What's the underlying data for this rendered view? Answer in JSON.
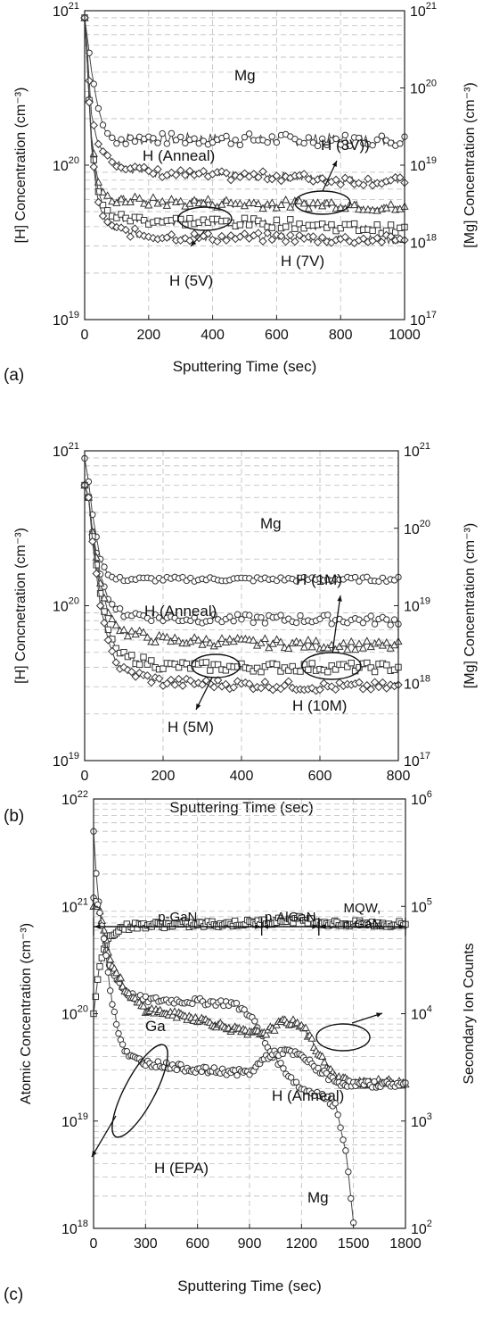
{
  "chart_data": [
    {
      "panel_label": "(a)",
      "type": "scatter",
      "xlabel": "Sputtering Time (sec)",
      "ylabel_left": "[H] Concentration (cm⁻³)",
      "ylabel_right": "[Mg] Concentration (cm⁻³)",
      "xlim": [
        0,
        1000
      ],
      "x_ticks": [
        "0",
        "200",
        "400",
        "600",
        "800",
        "1000"
      ],
      "ylim_left": [
        1e+19,
        1e+21
      ],
      "ylim_right": [
        1e+17,
        1e+21
      ],
      "y_scale": "log",
      "left_ticks": [
        {
          "base": "10",
          "exp": "19"
        },
        {
          "base": "10",
          "exp": "20"
        },
        {
          "base": "10",
          "exp": "21"
        }
      ],
      "right_ticks": [
        {
          "base": "10",
          "exp": "17"
        },
        {
          "base": "10",
          "exp": "18"
        },
        {
          "base": "10",
          "exp": "19"
        },
        {
          "base": "10",
          "exp": "20"
        },
        {
          "base": "10",
          "exp": "21"
        }
      ],
      "grid": true,
      "series": [
        {
          "name": "Mg",
          "axis": "right",
          "marker": "circle",
          "n": 140,
          "x": [
            0,
            10,
            20,
            40,
            60,
            80,
            100,
            1000
          ],
          "y": [
            8e+20,
            4e+20,
            1.8e+20,
            6e+19,
            3e+19,
            2.3e+19,
            2.2e+19,
            2.1e+19
          ]
        },
        {
          "name": "H (Anneal)",
          "axis": "left",
          "marker": "diamond",
          "n": 140,
          "x": [
            0,
            10,
            20,
            40,
            60,
            100,
            150,
            200,
            400,
            600,
            800,
            1000
          ],
          "y": [
            9e+20,
            5e+20,
            2.2e+20,
            1.4e+20,
            1.2e+20,
            1.05e+20,
            9.5e+19,
            9e+19,
            8.5e+19,
            8.5e+19,
            8e+19,
            7.8e+19
          ]
        },
        {
          "name": "H (3V)",
          "axis": "left",
          "marker": "triangle",
          "n": 140,
          "x": [
            0,
            10,
            20,
            40,
            60,
            100,
            200,
            400,
            600,
            800,
            1000
          ],
          "y": [
            9e+20,
            4e+20,
            1.6e+20,
            8e+19,
            6.5e+19,
            6e+19,
            5.8e+19,
            5.7e+19,
            5.6e+19,
            5.6e+19,
            5.2e+19
          ]
        },
        {
          "name": "H (5V)",
          "axis": "left",
          "marker": "square",
          "n": 140,
          "x": [
            0,
            10,
            20,
            40,
            60,
            100,
            200,
            400,
            600,
            800,
            1000
          ],
          "y": [
            9e+20,
            4e+20,
            1.5e+20,
            7e+19,
            5.3e+19,
            4.6e+19,
            4.4e+19,
            4.3e+19,
            4.2e+19,
            4e+19,
            3.8e+19
          ]
        },
        {
          "name": "H (7V)",
          "axis": "left",
          "marker": "diamond",
          "n": 140,
          "x": [
            0,
            10,
            20,
            40,
            60,
            100,
            200,
            400,
            600,
            800,
            1000
          ],
          "y": [
            9e+20,
            4e+20,
            1.4e+20,
            6e+19,
            4.5e+19,
            3.8e+19,
            3.5e+19,
            3.4e+19,
            3.4e+19,
            3.3e+19,
            3.3e+19
          ]
        }
      ],
      "annotations": [
        "Mg",
        "H (Anneal)",
        "H (3V))",
        "H (5V)",
        "H (7V)"
      ]
    },
    {
      "panel_label": "(b)",
      "type": "scatter",
      "xlabel": "Sputtering Time (sec)",
      "ylabel_left": "[H] Concnetration (cm⁻³)",
      "ylabel_right": "[Mg] Concentration (cm⁻³)",
      "xlim": [
        0,
        800
      ],
      "x_ticks": [
        "0",
        "200",
        "400",
        "600",
        "800"
      ],
      "ylim_left": [
        1e+19,
        1e+21
      ],
      "ylim_right": [
        1e+17,
        1e+21
      ],
      "y_scale": "log",
      "left_ticks": [
        {
          "base": "10",
          "exp": "19"
        },
        {
          "base": "10",
          "exp": "20"
        },
        {
          "base": "10",
          "exp": "21"
        }
      ],
      "right_ticks": [
        {
          "base": "10",
          "exp": "17"
        },
        {
          "base": "10",
          "exp": "18"
        },
        {
          "base": "10",
          "exp": "19"
        },
        {
          "base": "10",
          "exp": "20"
        },
        {
          "base": "10",
          "exp": "21"
        }
      ],
      "grid": true,
      "series": [
        {
          "name": "Mg",
          "axis": "right",
          "marker": "circle",
          "n": 80,
          "x": [
            0,
            10,
            20,
            40,
            60,
            80,
            100,
            800
          ],
          "y": [
            8e+20,
            4e+20,
            1.5e+20,
            4e+19,
            2.5e+19,
            2.2e+19,
            2.2e+19,
            2.2e+19
          ]
        },
        {
          "name": "H (Anneal)",
          "axis": "left",
          "marker": "circle",
          "n": 80,
          "x": [
            0,
            10,
            20,
            40,
            60,
            80,
            100,
            200,
            400,
            600,
            800
          ],
          "y": [
            6e+20,
            5e+20,
            3e+20,
            1.6e+20,
            1.1e+20,
            9.5e+19,
            9e+19,
            8.3e+19,
            8.2e+19,
            8.2e+19,
            8e+19
          ]
        },
        {
          "name": "H (1M)",
          "axis": "left",
          "marker": "triangle",
          "n": 80,
          "x": [
            0,
            10,
            20,
            40,
            60,
            80,
            100,
            200,
            400,
            600,
            800
          ],
          "y": [
            6e+20,
            5e+20,
            3e+20,
            1.4e+20,
            9e+19,
            7.5e+19,
            6.8e+19,
            6e+19,
            5.8e+19,
            5.6e+19,
            5.5e+19
          ]
        },
        {
          "name": "H (5M)",
          "axis": "left",
          "marker": "square",
          "n": 80,
          "x": [
            0,
            10,
            20,
            40,
            60,
            80,
            100,
            200,
            400,
            600,
            800
          ],
          "y": [
            6e+20,
            5e+20,
            2.8e+20,
            1.2e+20,
            7e+19,
            5.3e+19,
            4.7e+19,
            4.1e+19,
            4e+19,
            4e+19,
            4e+19
          ]
        },
        {
          "name": "H (10M)",
          "axis": "left",
          "marker": "diamond",
          "n": 80,
          "x": [
            0,
            10,
            20,
            40,
            60,
            80,
            100,
            200,
            400,
            600,
            800
          ],
          "y": [
            6e+20,
            5e+20,
            2.6e+20,
            1e+20,
            6e+19,
            4.3e+19,
            3.8e+19,
            3.2e+19,
            3.1e+19,
            3e+19,
            3e+19
          ]
        }
      ],
      "annotations": [
        "Mg",
        "H (Anneal)",
        "H (1M)",
        "H (5M)",
        "H (10M)"
      ]
    },
    {
      "panel_label": "(c)",
      "type": "scatter",
      "xlabel": "Sputtering Time (sec)",
      "ylabel_left": "Atomic Concentration (cm⁻³)",
      "ylabel_right": "Secondary Ion Counts",
      "xlim": [
        0,
        1800
      ],
      "x_ticks": [
        "0",
        "300",
        "600",
        "900",
        "1200",
        "1500",
        "1800"
      ],
      "ylim_left": [
        1e+18,
        1e+22
      ],
      "ylim_right": [
        100.0,
        1000000.0
      ],
      "y_scale": "log",
      "left_ticks": [
        {
          "base": "10",
          "exp": "18"
        },
        {
          "base": "10",
          "exp": "19"
        },
        {
          "base": "10",
          "exp": "20"
        },
        {
          "base": "10",
          "exp": "21"
        },
        {
          "base": "10",
          "exp": "22"
        }
      ],
      "right_ticks": [
        {
          "base": "10",
          "exp": "2"
        },
        {
          "base": "10",
          "exp": "3"
        },
        {
          "base": "10",
          "exp": "4"
        },
        {
          "base": "10",
          "exp": "5"
        },
        {
          "base": "10",
          "exp": "6"
        }
      ],
      "grid": true,
      "regions": [
        {
          "label": "p-GaN",
          "from": 0,
          "to": 970
        },
        {
          "label": "p-AlGaN",
          "from": 970,
          "to": 1300
        },
        {
          "label": "MQW,",
          "label2": "n-GaN",
          "from": 1300,
          "to": 1800
        }
      ],
      "series": [
        {
          "name": "Ga",
          "axis": "right",
          "marker": "square",
          "n": 300,
          "x": [
            0,
            30,
            60,
            100,
            150,
            200,
            300,
            600,
            900,
            1100,
            1200,
            1300,
            1400,
            1800
          ],
          "y": [
            10000.0,
            25000.0,
            40000.0,
            55000.0,
            62000.0,
            65000.0,
            67000.0,
            68000.0,
            70000.0,
            74000.0,
            76000.0,
            72000.0,
            69000.0,
            68000.0
          ]
        },
        {
          "name": "Mg",
          "axis": "left",
          "marker": "circle",
          "n": 100,
          "x": [
            0,
            20,
            50,
            100,
            200,
            300,
            600,
            800,
            900,
            1000,
            1100,
            1200,
            1300,
            1400,
            1450,
            1500
          ],
          "y": [
            5e+21,
            1.5e+21,
            6e+20,
            2.5e+20,
            1.5e+20,
            1.35e+20,
            1.3e+20,
            1.25e+20,
            1e+20,
            5e+19,
            3e+19,
            2e+19,
            1.8e+19,
            1.4e+19,
            6e+18,
            1.2e+18
          ]
        },
        {
          "name": "H (Anneal)",
          "axis": "left",
          "marker": "triangle",
          "n": 300,
          "x": [
            0,
            30,
            60,
            100,
            200,
            300,
            600,
            900,
            1000,
            1100,
            1200,
            1250,
            1300,
            1400,
            1500,
            1800
          ],
          "y": [
            1e+21,
            1e+21,
            6e+20,
            3e+20,
            1.5e+20,
            1.1e+20,
            9e+19,
            6.5e+19,
            6.8e+19,
            8.5e+19,
            8e+19,
            6e+19,
            4.2e+19,
            2.5e+19,
            2.3e+19,
            2.3e+19
          ]
        },
        {
          "name": "H (EPA)",
          "axis": "left",
          "marker": "circle",
          "n": 300,
          "x": [
            0,
            30,
            60,
            100,
            150,
            200,
            300,
            600,
            900,
            1000,
            1100,
            1200,
            1300,
            1400,
            1500,
            1800
          ],
          "y": [
            1.2e+21,
            1e+21,
            5e+20,
            1.5e+20,
            6e+19,
            4e+19,
            3.5e+19,
            3e+19,
            2.8e+19,
            4e+19,
            4.5e+19,
            4e+19,
            3e+19,
            2.3e+19,
            2.2e+19,
            2.2e+19
          ]
        }
      ],
      "annotations": [
        "Ga",
        "H (Anneal)",
        "H (EPA)",
        "Mg"
      ]
    }
  ]
}
